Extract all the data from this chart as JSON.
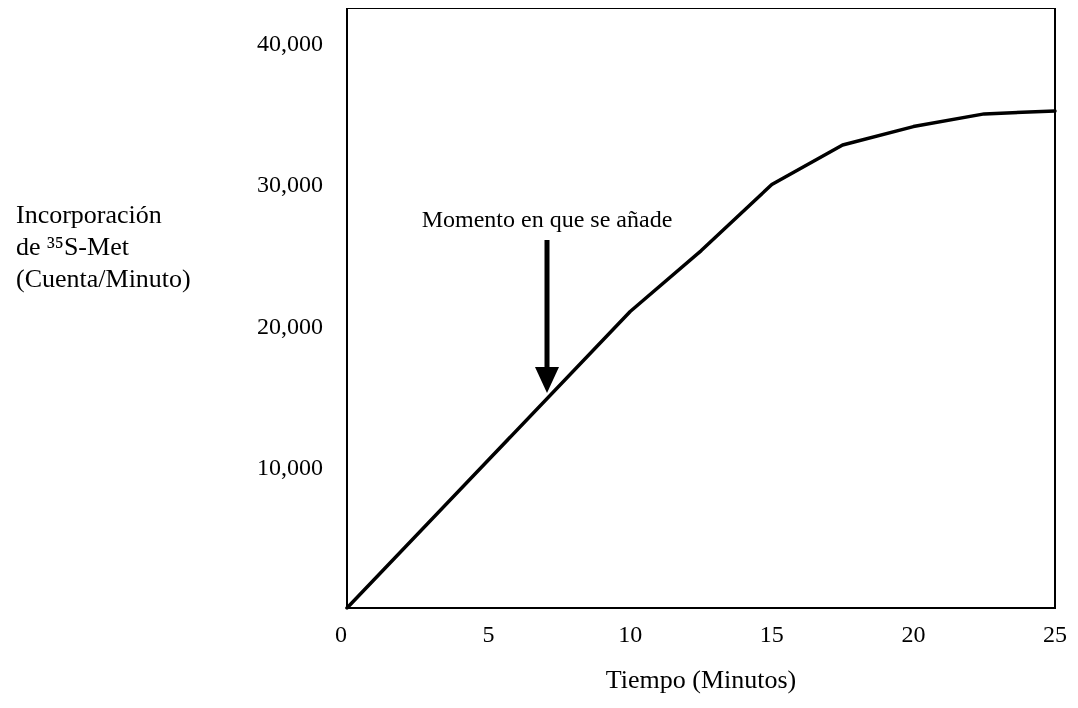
{
  "chart_data": {
    "type": "line",
    "xlabel": "Tiempo (Minutos)",
    "ylabel": "Incorporación de ³⁵S-Met (Cuenta/Minuto)",
    "x": [
      0,
      5,
      10,
      12.5,
      15,
      17.5,
      20,
      22.5,
      25
    ],
    "series": [
      {
        "color": "#000000",
        "values": [
          0,
          10500,
          21000,
          25300,
          30000,
          32800,
          34100,
          35000,
          35200
        ]
      }
    ],
    "xlim": [
      0,
      25
    ],
    "xticks": [
      0,
      5,
      10,
      15,
      20,
      25
    ],
    "ylim": [
      0,
      42500
    ],
    "yticks": [
      {
        "value": 10000,
        "label": "10,000"
      },
      {
        "value": 20000,
        "label": "20,000"
      },
      {
        "value": 30000,
        "label": "30,000"
      },
      {
        "value": 40000,
        "label": "40,000"
      }
    ],
    "annotations": [
      "Momento en que se añade"
    ],
    "grid": false,
    "marker": "none",
    "line_style": "solid"
  }
}
